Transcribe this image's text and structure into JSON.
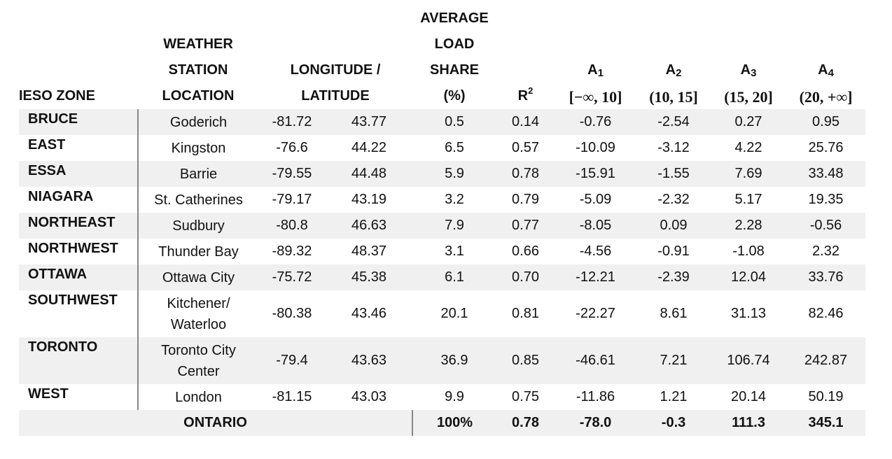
{
  "headers": {
    "zone": "IESO ZONE",
    "station_line1": "WEATHER",
    "station_line2": "STATION",
    "station_line3": "LOCATION",
    "lonlat_line1": "LONGITUDE /",
    "lonlat_line2": "LATITUDE",
    "share_line1": "AVERAGE",
    "share_line2": "LOAD",
    "share_line3": "SHARE",
    "share_line4": "(%)",
    "r2_base": "R",
    "r2_sup": "2",
    "a1_base": "A",
    "a1_sub": "1",
    "a1_range": "[−∞, 10]",
    "a2_base": "A",
    "a2_sub": "2",
    "a2_range": "(10, 15]",
    "a3_base": "A",
    "a3_sub": "3",
    "a3_range": "(15, 20]",
    "a4_base": "A",
    "a4_sub": "4",
    "a4_range": "(20, +∞]"
  },
  "rows": [
    {
      "zone": "BRUCE",
      "station_l1": "Goderich",
      "station_l2": "",
      "lon": "-81.72",
      "lat": "43.77",
      "share": "0.5",
      "r2": "0.14",
      "a1": "-0.76",
      "a2": "-2.54",
      "a3": "0.27",
      "a4": "0.95"
    },
    {
      "zone": "EAST",
      "station_l1": "Kingston",
      "station_l2": "",
      "lon": "-76.6",
      "lat": "44.22",
      "share": "6.5",
      "r2": "0.57",
      "a1": "-10.09",
      "a2": "-3.12",
      "a3": "4.22",
      "a4": "25.76"
    },
    {
      "zone": "ESSA",
      "station_l1": "Barrie",
      "station_l2": "",
      "lon": "-79.55",
      "lat": "44.48",
      "share": "5.9",
      "r2": "0.78",
      "a1": "-15.91",
      "a2": "-1.55",
      "a3": "7.69",
      "a4": "33.48"
    },
    {
      "zone": "NIAGARA",
      "station_l1": "St. Catherines",
      "station_l2": "",
      "lon": "-79.17",
      "lat": "43.19",
      "share": "3.2",
      "r2": "0.79",
      "a1": "-5.09",
      "a2": "-2.32",
      "a3": "5.17",
      "a4": "19.35"
    },
    {
      "zone": "NORTHEAST",
      "station_l1": "Sudbury",
      "station_l2": "",
      "lon": "-80.8",
      "lat": "46.63",
      "share": "7.9",
      "r2": "0.77",
      "a1": "-8.05",
      "a2": "0.09",
      "a3": "2.28",
      "a4": "-0.56"
    },
    {
      "zone": "NORTHWEST",
      "station_l1": "Thunder Bay",
      "station_l2": "",
      "lon": "-89.32",
      "lat": "48.37",
      "share": "3.1",
      "r2": "0.66",
      "a1": "-4.56",
      "a2": "-0.91",
      "a3": "-1.08",
      "a4": "2.32"
    },
    {
      "zone": "OTTAWA",
      "station_l1": "Ottawa City",
      "station_l2": "",
      "lon": "-75.72",
      "lat": "45.38",
      "share": "6.1",
      "r2": "0.70",
      "a1": "-12.21",
      "a2": "-2.39",
      "a3": "12.04",
      "a4": "33.76"
    },
    {
      "zone": "SOUTHWEST",
      "station_l1": "Kitchener/",
      "station_l2": "Waterloo",
      "lon": "-80.38",
      "lat": "43.46",
      "share": "20.1",
      "r2": "0.81",
      "a1": "-22.27",
      "a2": "8.61",
      "a3": "31.13",
      "a4": "82.46"
    },
    {
      "zone": "TORONTO",
      "station_l1": "Toronto City",
      "station_l2": "Center",
      "lon": "-79.4",
      "lat": "43.63",
      "share": "36.9",
      "r2": "0.85",
      "a1": "-46.61",
      "a2": "7.21",
      "a3": "106.74",
      "a4": "242.87"
    },
    {
      "zone": "WEST",
      "station_l1": "London",
      "station_l2": "",
      "lon": "-81.15",
      "lat": "43.03",
      "share": "9.9",
      "r2": "0.75",
      "a1": "-11.86",
      "a2": "1.21",
      "a3": "20.14",
      "a4": "50.19"
    }
  ],
  "total": {
    "label": "ONTARIO",
    "share": "100%",
    "r2": "0.78",
    "a1": "-78.0",
    "a2": "-0.3",
    "a3": "111.3",
    "a4": "345.1"
  }
}
